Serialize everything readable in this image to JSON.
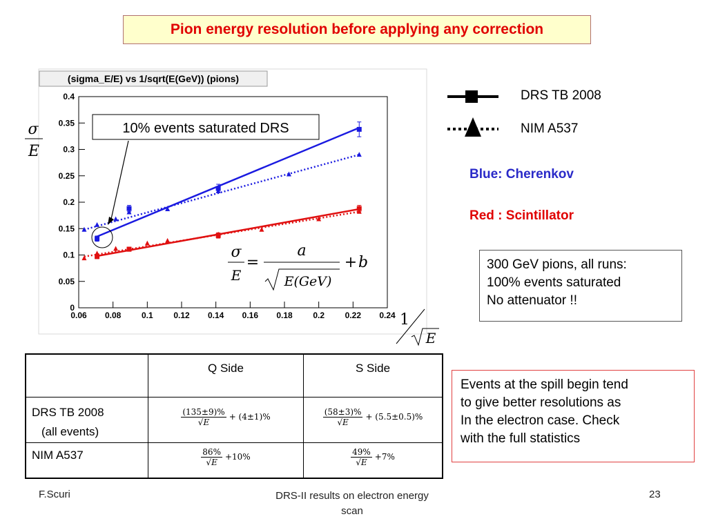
{
  "slide_title": "Pion energy resolution before applying any correction",
  "plot": {
    "frame_title": "(sigma_E/E) vs 1/sqrt(E(GeV)) (pions)",
    "annotation": "10% events saturated DRS"
  },
  "chart_data": {
    "type": "scatter",
    "title": "(sigma_E/E) vs 1/sqrt(E(GeV)) (pions)",
    "xlim": [
      0.06,
      0.24
    ],
    "ylim": [
      0,
      0.4
    ],
    "x_ticks": [
      "0.06",
      "0.08",
      "0.1",
      "0.12",
      "0.14",
      "0.16",
      "0.18",
      "0.2",
      "0.22",
      "0.24"
    ],
    "y_ticks": [
      "0",
      "0.05",
      "0.1",
      "0.15",
      "0.2",
      "0.25",
      "0.3",
      "0.35",
      "0.4"
    ],
    "grid": false,
    "series": [
      {
        "name": "DRS TB 2008",
        "x": [
          0.0707,
          0.0894,
          0.1414,
          0.2236
        ],
        "y": [
          0.131,
          0.188,
          0.226,
          0.338
        ],
        "errors": [
          0.005,
          0.006,
          0.008,
          0.014
        ],
        "color": "#1a1ae0",
        "marker": "square",
        "fit": [
          0.0707,
          0.2236,
          0.135,
          0.341
        ],
        "fit_style": "solid"
      },
      {
        "name": "NIM A537",
        "x": [
          0.0632,
          0.0707,
          0.0816,
          0.0894,
          0.1118,
          0.1414,
          0.1826,
          0.2236
        ],
        "y": [
          0.148,
          0.157,
          0.168,
          0.181,
          0.187,
          0.221,
          0.253,
          0.29
        ],
        "color": "#1a1ae0",
        "marker": "triangle",
        "fit": [
          0.0632,
          0.2236,
          0.148,
          0.29
        ],
        "fit_style": "dotted"
      },
      {
        "name": "DRS TB 2008",
        "x": [
          0.0707,
          0.0894,
          0.1414,
          0.2236
        ],
        "y": [
          0.097,
          0.111,
          0.137,
          0.188
        ],
        "errors": [
          0.004,
          0.004,
          0.005,
          0.006
        ],
        "color": "#e01010",
        "marker": "square",
        "fit": [
          0.0707,
          0.2236,
          0.098,
          0.187
        ],
        "fit_style": "solid"
      },
      {
        "name": "NIM A537",
        "x": [
          0.0632,
          0.0707,
          0.0816,
          0.1,
          0.1118,
          0.1414,
          0.1667,
          0.2,
          0.2236
        ],
        "y": [
          0.094,
          0.103,
          0.112,
          0.122,
          0.127,
          0.139,
          0.148,
          0.168,
          0.182
        ],
        "color": "#e01010",
        "marker": "triangle",
        "fit": [
          0.0632,
          0.2236,
          0.097,
          0.182
        ],
        "fit_style": "dotted"
      }
    ]
  },
  "legend": {
    "drs": "DRS TB 2008",
    "nim": "NIM A537"
  },
  "notes": {
    "blue": "Blue: Cherenkov",
    "red": "Red : Scintillator"
  },
  "info_box": {
    "line1": "300 GeV pions, all runs:",
    "line2": "100% events saturated",
    "line3": "No attenuator !!"
  },
  "events_box": {
    "line1": "Events at the spill begin tend",
    "line2": "to give better resolutions as",
    "line3": "In the electron case. Check",
    "line4": "with the full statistics"
  },
  "formula": {
    "sigma": "σ",
    "E": "E",
    "a": "a",
    "b": "b",
    "egev": "E(GeV)",
    "one": "1"
  },
  "table": {
    "headers": [
      "",
      "Q Side",
      "S Side"
    ],
    "rows": [
      {
        "label1": "DRS TB 2008",
        "label2": "(all events)",
        "q_num": "(135±9)%",
        "q_add": "+ (4±1)%",
        "s_num": "(58±3)%",
        "s_add": "+ (5.5±0.5)%"
      },
      {
        "label1": "NIM A537",
        "label2": "",
        "q_num": "86%",
        "q_add": "+10%",
        "s_num": "49%",
        "s_add": "+7%"
      }
    ]
  },
  "footer": {
    "author": "F.Scuri",
    "center_line1": "DRS-II results on electron energy",
    "center_line2": "scan",
    "page": "23"
  }
}
